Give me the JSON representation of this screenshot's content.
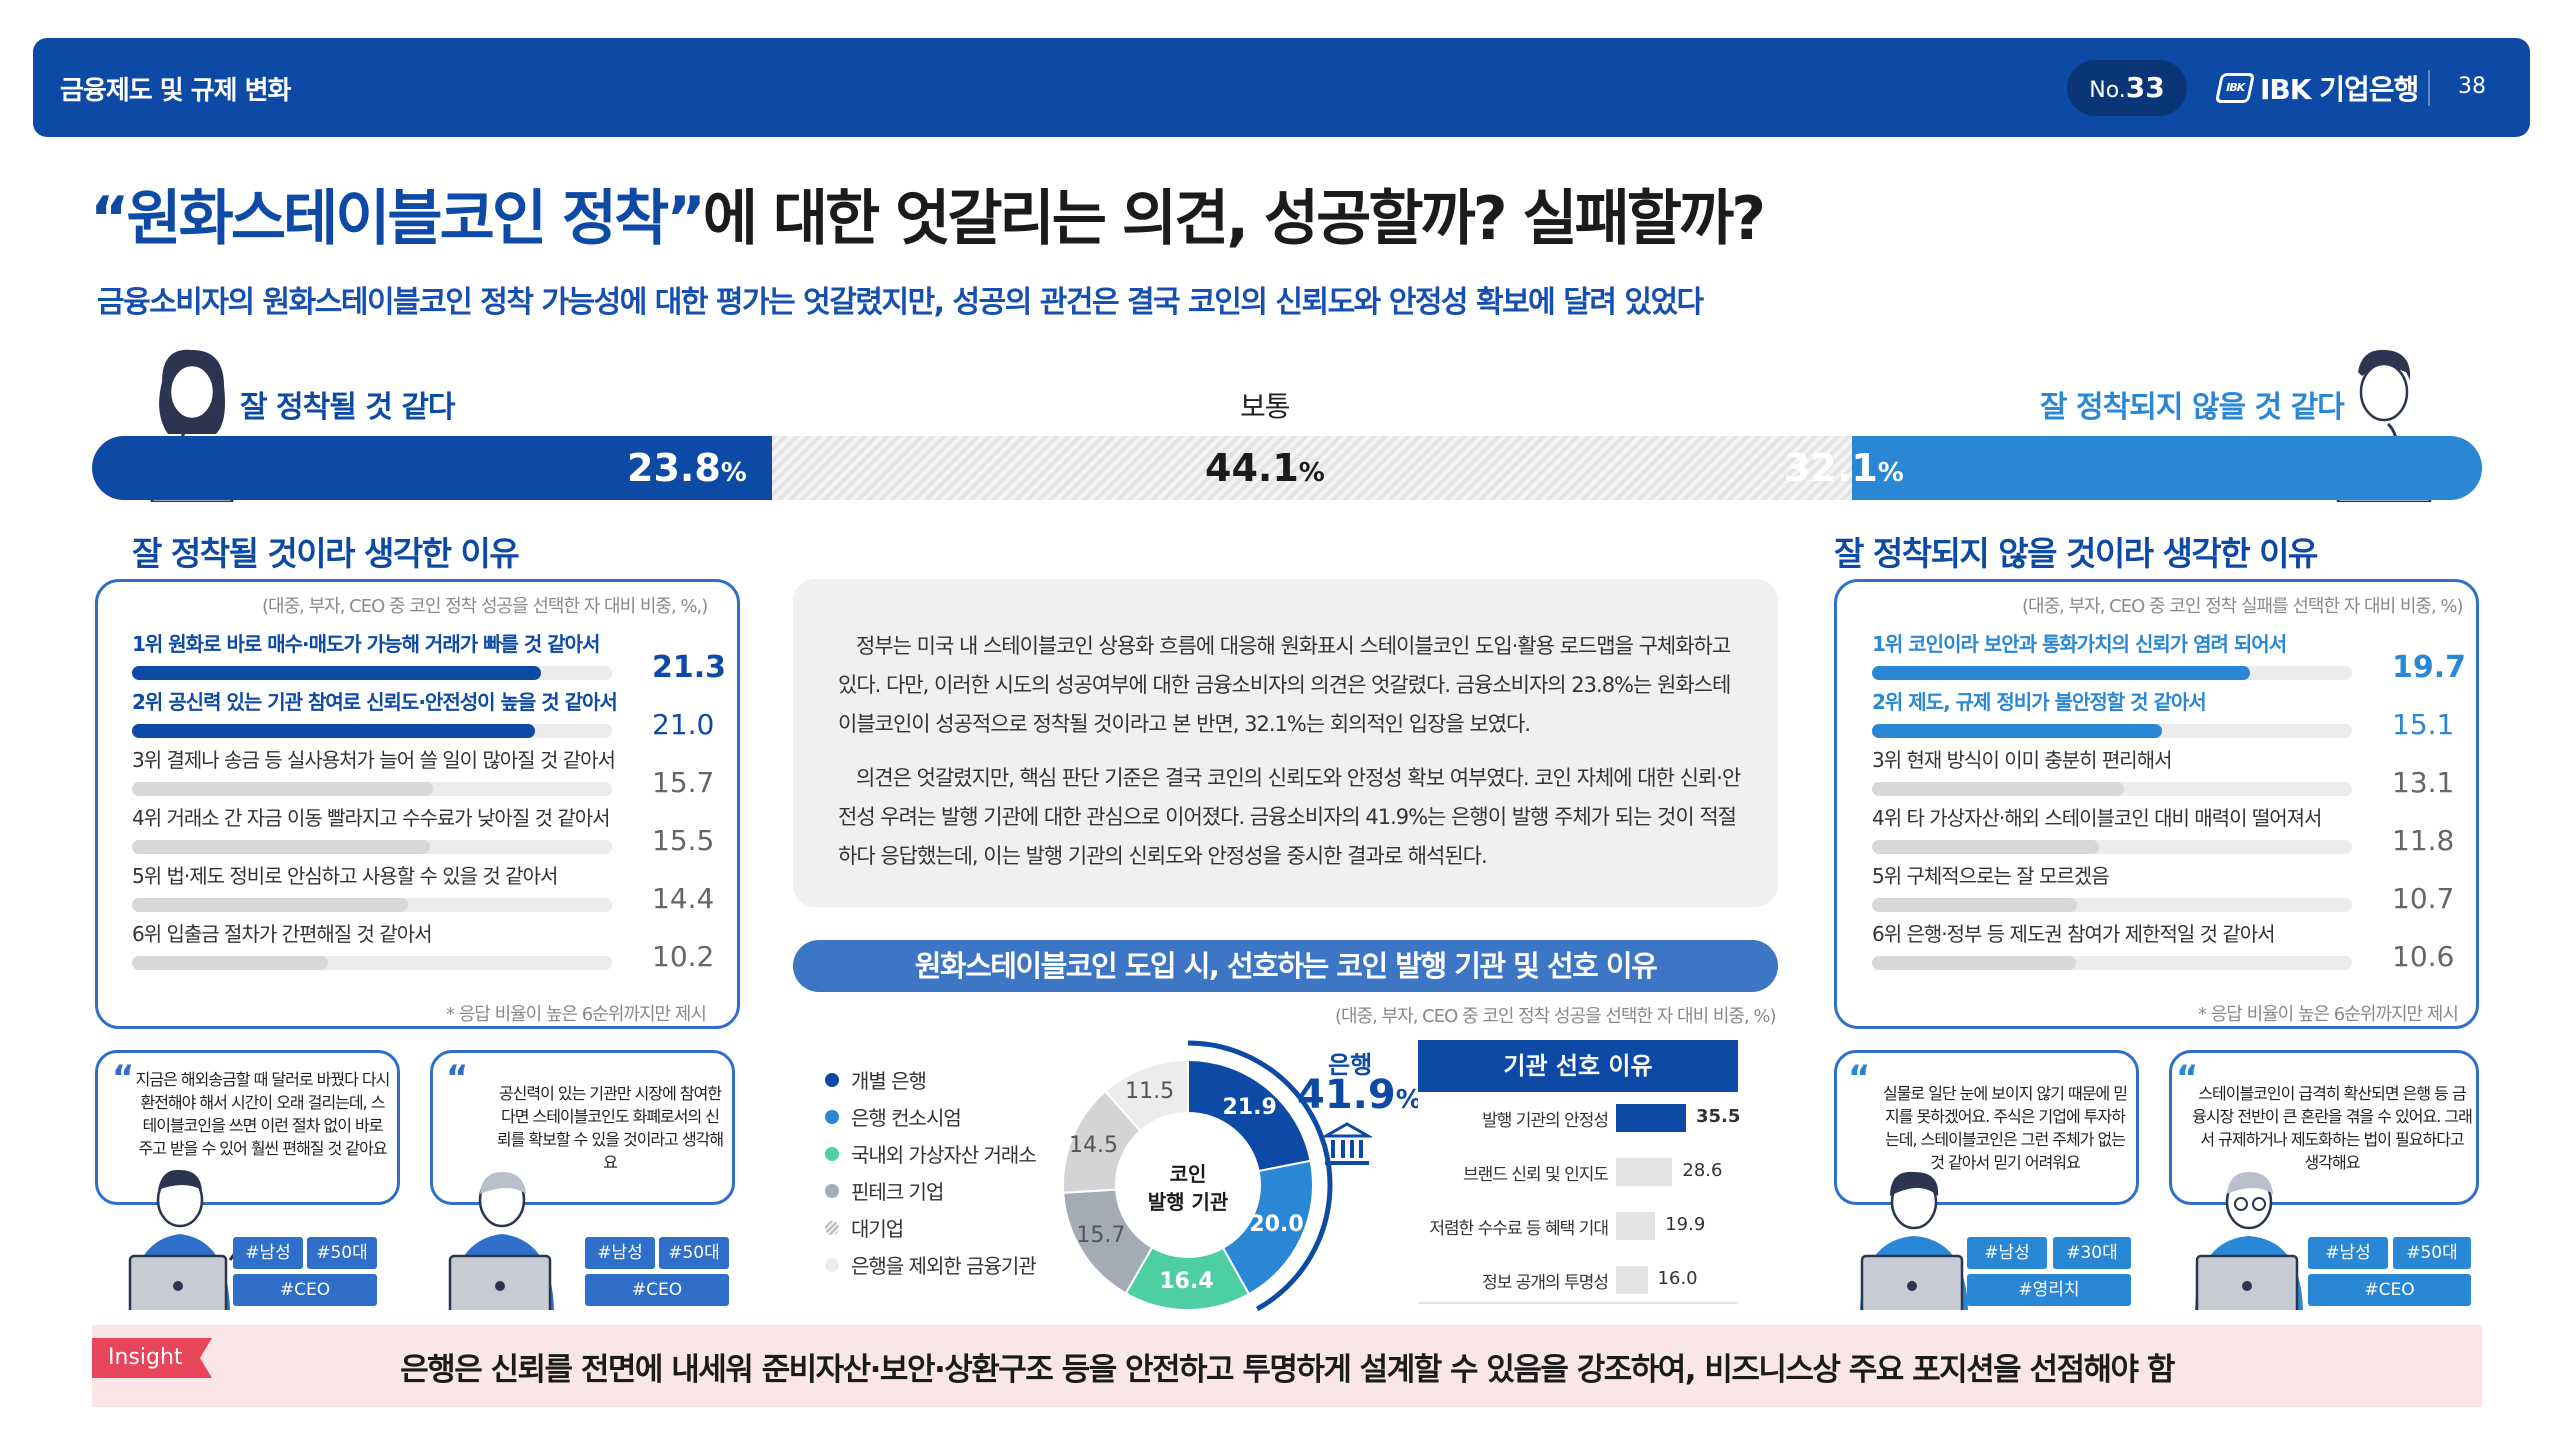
{
  "header": {
    "section": "금융제도 및 규제 변화",
    "issue_prefix": "No.",
    "issue_num": "33",
    "logo": "IBK 기업은행",
    "page": "38"
  },
  "title": {
    "quote": "“원화스테이블코인 정착”",
    "rest": "에 대한 엇갈리는 의견, 성공할까? 실패할까?"
  },
  "subtitle": "금융소비자의 원화스테이블코인 정착 가능성에 대한 평가는 엇갈렸지만, 성공의 관건은 결국 코인의 신뢰도와 안정성 확보에 달려 있었다",
  "sentiment": {
    "positive": {
      "label": "잘 정착될 것 같다",
      "value": 23.8,
      "value_text": "23.8"
    },
    "neutral": {
      "label": "보통",
      "value": 44.1,
      "value_text": "44.1"
    },
    "negative": {
      "label": "잘 정착되지 않을 것 같다",
      "value": 32.1,
      "value_text": "32.1"
    },
    "unit": "%"
  },
  "left_panel": {
    "title": "잘 정착될 것이라 생각한 이유",
    "note": "(대중, 부자, CEO 중 코인 정착 성공을 선택한 자 대비 비중, %,)",
    "items": [
      {
        "rank": "1위",
        "label": "원화로 바로 매수·매도가 가능해 거래가 빠를 것 같아서",
        "value": 21.3,
        "value_text": "21.3"
      },
      {
        "rank": "2위",
        "label": "공신력 있는 기관 참여로 신뢰도·안전성이 높을 것 같아서",
        "value": 21.0,
        "value_text": "21.0"
      },
      {
        "rank": "3위",
        "label": "결제나 송금 등 실사용처가 늘어 쓸 일이 많아질 것 같아서",
        "value": 15.7,
        "value_text": "15.7"
      },
      {
        "rank": "4위",
        "label": "거래소 간 자금 이동 빨라지고 수수료가 낮아질 것 같아서",
        "value": 15.5,
        "value_text": "15.5"
      },
      {
        "rank": "5위",
        "label": "법·제도 정비로 안심하고 사용할 수 있을 것 같아서",
        "value": 14.4,
        "value_text": "14.4"
      },
      {
        "rank": "6위",
        "label": "입출금 절차가 간편해질 것 같아서",
        "value": 10.2,
        "value_text": "10.2"
      }
    ],
    "footnote": "* 응답 비율이 높은 6순위까지만 제시"
  },
  "right_panel": {
    "title": "잘 정착되지 않을 것이라 생각한 이유",
    "note": "(대중, 부자, CEO 중 코인 정착 실패를 선택한 자 대비 비중, %)",
    "items": [
      {
        "rank": "1위",
        "label": "코인이라 보안과 통화가치의 신뢰가 염려 되어서",
        "value": 19.7,
        "value_text": "19.7"
      },
      {
        "rank": "2위",
        "label": "제도, 규제 정비가 불안정할 것 같아서",
        "value": 15.1,
        "value_text": "15.1"
      },
      {
        "rank": "3위",
        "label": "현재 방식이 이미 충분히 편리해서",
        "value": 13.1,
        "value_text": "13.1"
      },
      {
        "rank": "4위",
        "label": "타 가상자산·해외 스테이블코인 대비 매력이 떨어져서",
        "value": 11.8,
        "value_text": "11.8"
      },
      {
        "rank": "5위",
        "label": "구체적으로는 잘 모르겠음",
        "value": 10.7,
        "value_text": "10.7"
      },
      {
        "rank": "6위",
        "label": "은행·정부 등 제도권 참여가 제한적일 것 같아서",
        "value": 10.6,
        "value_text": "10.6"
      }
    ],
    "footnote": "* 응답 비율이 높은 6순위까지만 제시"
  },
  "center_text": {
    "p1": "정부는 미국 내 스테이블코인 상용화 흐름에 대응해 원화표시 스테이블코인 도입·활용 로드맵을 구체화하고 있다. 다만, 이러한 시도의 성공여부에 대한 금융소비자의 의견은 엇갈렸다. 금융소비자의 23.8%는 원화스테이블코인이 성공적으로 정착될 것이라고 본 반면, 32.1%는 회의적인 입장을 보였다.",
    "p2": "의견은 엇갈렸지만, 핵심 판단 기준은 결국 코인의 신뢰도와 안정성 확보 여부였다. 코인 자체에 대한 신뢰·안전성 우려는 발행 기관에 대한 관심으로 이어졌다. 금융소비자의 41.9%는 은행이 발행 주체가 되는 것이 적절하다 응답했는데, 이는 발행 기관의 신뢰도와 안정성을 중시한 결과로 해석된다."
  },
  "issuer_section": {
    "title": "원화스테이블코인 도입 시, 선호하는 코인 발행 기관 및 선호 이유",
    "note": "(대중, 부자, CEO 중 코인 정착 성공을 선택한 자 대비 비중, %)",
    "bank_label": "은행",
    "bank_value": "41.9",
    "bank_unit": "%",
    "donut_center_1": "코인",
    "donut_center_2": "발행 기관"
  },
  "chart_data": [
    {
      "type": "pie",
      "title": "코인 발행 기관",
      "categories": [
        "개별 은행",
        "은행 컨소시엄",
        "국내외 가상자산 거래소",
        "핀테크 기업",
        "대기업",
        "은행을 제외한 금융기관"
      ],
      "values": [
        21.9,
        20.0,
        16.4,
        15.7,
        14.5,
        11.5
      ],
      "labels": [
        "21.9",
        "20.0",
        "16.4",
        "15.7",
        "14.5",
        "11.5"
      ],
      "colors": [
        "#0d4aa5",
        "#2a87d6",
        "#4ecfa3",
        "#a4abb6",
        "#d4d4d4",
        "#ececec"
      ]
    },
    {
      "type": "bar",
      "title": "기관 선호 이유",
      "categories": [
        "발행 기관의 안정성",
        "브랜드 신뢰 및 인지도",
        "저렴한 수수료 등 혜택 기대",
        "정보 공개의 투명성"
      ],
      "values": [
        35.5,
        28.6,
        19.9,
        16.0
      ],
      "labels": [
        "35.5",
        "28.6",
        "19.9",
        "16.0"
      ]
    }
  ],
  "quotes": [
    {
      "text": "지금은 해외송금할 때 달러로 바꿨다 다시 환전해야 해서 시간이 오래 걸리는데, 스테이블코인을 쓰면 이런 절차 없이 바로 주고 받을 수 있어 훨씬 편해질 것 같아요",
      "tags": [
        "#남성",
        "#50대",
        "#CEO"
      ]
    },
    {
      "text": "공신력이 있는 기관만 시장에 참여한다면 스테이블코인도 화폐로서의 신뢰를 확보할 수 있을 것이라고 생각해요",
      "tags": [
        "#남성",
        "#50대",
        "#CEO"
      ]
    },
    {
      "text": "실물로 일단 눈에 보이지 않기 때문에 믿지를 못하겠어요. 주식은 기업에 투자하는데, 스테이블코인은 그런 주체가 없는 것 같아서 믿기 어려워요",
      "tags": [
        "#남성",
        "#30대",
        "#영리치"
      ]
    },
    {
      "text": "스테이블코인이 급격히 확산되면 은행 등 금융시장 전반이 큰 혼란을 겪을 수 있어요. 그래서 규제하거나 제도화하는 법이 필요하다고 생각해요",
      "tags": [
        "#남성",
        "#50대",
        "#CEO"
      ]
    }
  ],
  "quote_marks": {
    "left": "“",
    "right": "”"
  },
  "insight": {
    "tag": "Insight",
    "text": "은행은 신뢰를 전면에 내세워 준비자산·보안·상환구조 등을 안전하고 투명하게 설계할 수 있음을 강조하여, 비즈니스상 주요 포지션을 선점해야 함"
  },
  "colors": {
    "primary": "#0d4aa5",
    "accent": "#2a87d6",
    "teal": "#4ecfa3",
    "insight_red": "#e8465b"
  }
}
